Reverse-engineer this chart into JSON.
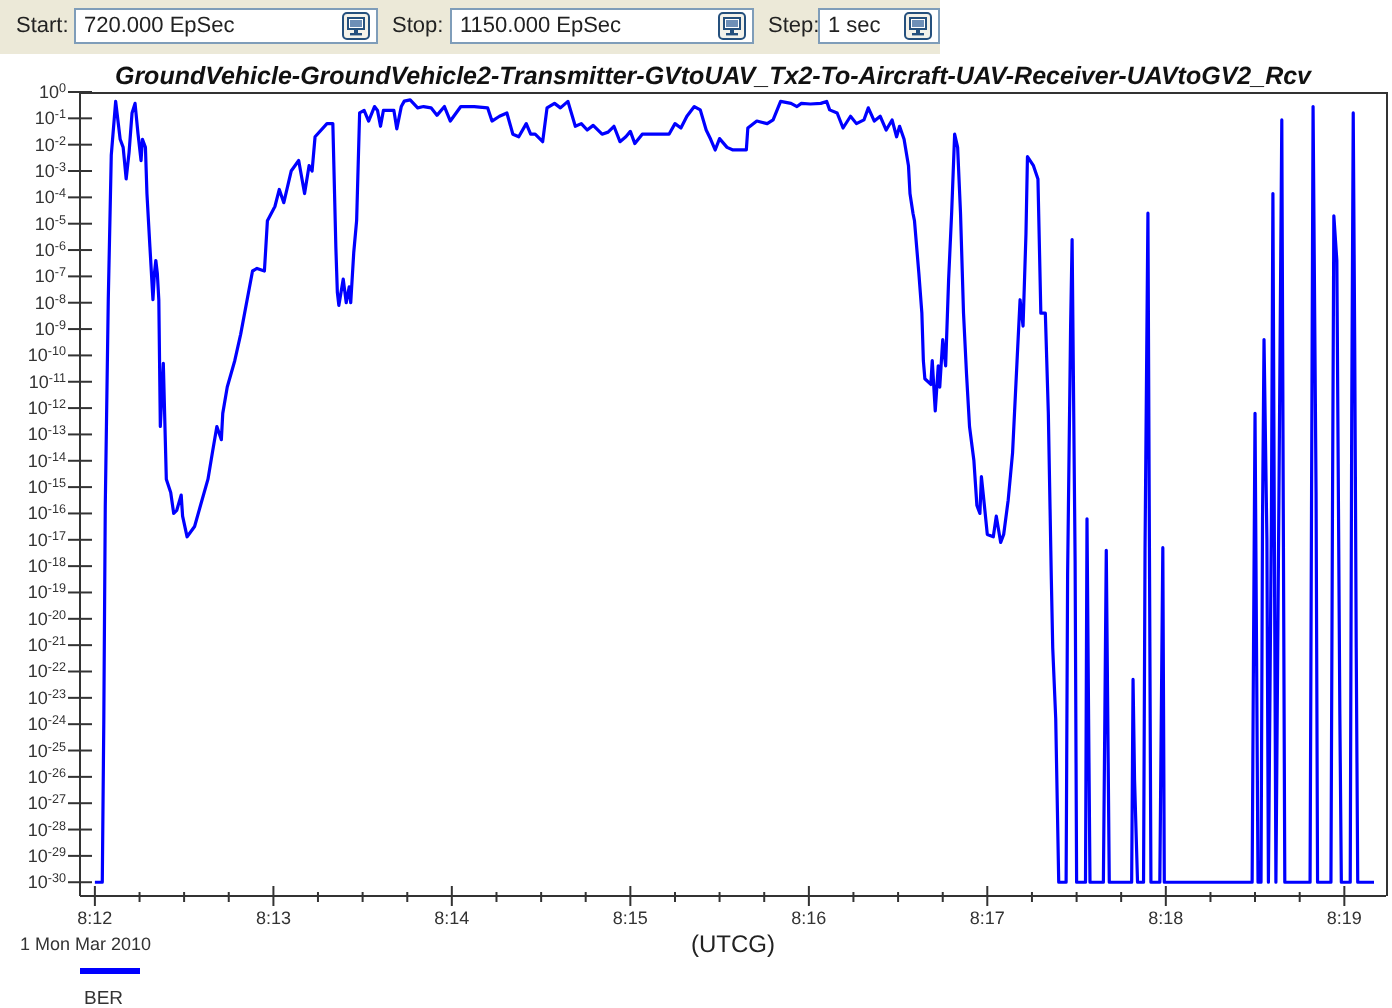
{
  "chart_data": {
    "type": "line",
    "title": "GroundVehicle-GroundVehicle2-Transmitter-GVtoUAV_Tx2-To-Aircraft-UAV-Receiver-UAVtoGV2_Rcv",
    "xlabel": "(UTCG)",
    "annotations": [
      "Start:",
      "720.000 EpSec",
      "Stop:",
      "1150.000 EpSec",
      "Step:",
      "1 sec",
      "1 Mon Mar 2010"
    ],
    "log": "y",
    "legend": "bottom left",
    "marker": "none",
    "line_style": "solid",
    "xlim": [
      8.19861,
      8.32056
    ],
    "xticks": [
      {
        "value": 8.2,
        "label": "8:12"
      },
      {
        "value": 8.20417,
        "label": null
      },
      {
        "value": 8.20833,
        "label": null
      },
      {
        "value": 8.2125,
        "label": null
      },
      {
        "value": 8.21667,
        "label": "8:13"
      },
      {
        "value": 8.22083,
        "label": null
      },
      {
        "value": 8.225,
        "label": null
      },
      {
        "value": 8.22917,
        "label": null
      },
      {
        "value": 8.23333,
        "label": "8:14"
      },
      {
        "value": 8.2375,
        "label": null
      },
      {
        "value": 8.24167,
        "label": null
      },
      {
        "value": 8.24583,
        "label": null
      },
      {
        "value": 8.25,
        "label": "8:15"
      },
      {
        "value": 8.25417,
        "label": null
      },
      {
        "value": 8.25833,
        "label": null
      },
      {
        "value": 8.2625,
        "label": null
      },
      {
        "value": 8.26667,
        "label": "8:16"
      },
      {
        "value": 8.27083,
        "label": null
      },
      {
        "value": 8.275,
        "label": null
      },
      {
        "value": 8.27917,
        "label": null
      },
      {
        "value": 8.28333,
        "label": "8:17"
      },
      {
        "value": 8.2875,
        "label": null
      },
      {
        "value": 8.29167,
        "label": null
      },
      {
        "value": 8.29583,
        "label": null
      },
      {
        "value": 8.3,
        "label": "8:18"
      },
      {
        "value": 8.30417,
        "label": null
      },
      {
        "value": 8.30833,
        "label": null
      },
      {
        "value": 8.3125,
        "label": null
      },
      {
        "value": 8.31667,
        "label": "8:19"
      }
    ],
    "ylim": [
      3e-31,
      1
    ],
    "yticks": [
      {
        "value": 1,
        "label": "10$^{0}$"
      },
      {
        "value": 0.1,
        "label": "10$^{-1}$"
      },
      {
        "value": 0.01,
        "label": "10$^{-2}$"
      },
      {
        "value": 0.001,
        "label": "10$^{-3}$"
      },
      {
        "value": 0.0001,
        "label": "10$^{-4}$"
      },
      {
        "value": 1e-05,
        "label": "10$^{-5}$"
      },
      {
        "value": 1e-06,
        "label": "10$^{-6}$"
      },
      {
        "value": 1e-07,
        "label": "10$^{-7}$"
      },
      {
        "value": 1e-08,
        "label": "10$^{-8}$"
      },
      {
        "value": 1e-09,
        "label": "10$^{-9}$"
      },
      {
        "value": 1e-10,
        "label": "10$^{-10}$"
      },
      {
        "value": 1e-11,
        "label": "10$^{-11}$"
      },
      {
        "value": 1e-12,
        "label": "10$^{-12}$"
      },
      {
        "value": 1e-13,
        "label": "10$^{-13}$"
      },
      {
        "value": 1e-14,
        "label": "10$^{-14}$"
      },
      {
        "value": 1e-15,
        "label": "10$^{-15}$"
      },
      {
        "value": 1e-16,
        "label": "10$^{-16}$"
      },
      {
        "value": 1e-17,
        "label": "10$^{-17}$"
      },
      {
        "value": 1e-18,
        "label": "10$^{-18}$"
      },
      {
        "value": 1e-19,
        "label": "10$^{-19}$"
      },
      {
        "value": 1e-20,
        "label": "10$^{-20}$"
      },
      {
        "value": 1e-21,
        "label": "10$^{-21}$"
      },
      {
        "value": 1e-22,
        "label": "10$^{-22}$"
      },
      {
        "value": 1e-23,
        "label": "10$^{-23}$"
      },
      {
        "value": 1e-24,
        "label": "10$^{-24}$"
      },
      {
        "value": 1e-25,
        "label": "10$^{-25}$"
      },
      {
        "value": 1e-26,
        "label": "10$^{-26}$"
      },
      {
        "value": 1e-27,
        "label": "10$^{-27}$"
      },
      {
        "value": 1e-28,
        "label": "10$^{-28}$"
      },
      {
        "value": 1e-29,
        "label": "10$^{-29}$"
      },
      {
        "value": 1e-30,
        "label": "10$^{-30}$"
      }
    ],
    "x": [
      8.2,
      8.20069,
      8.20083,
      8.20097,
      8.20125,
      8.20153,
      8.20194,
      8.20236,
      8.20264,
      8.20292,
      8.20319,
      8.20347,
      8.20375,
      8.20403,
      8.20431,
      8.20444,
      8.20472,
      8.20486,
      8.20514,
      8.20542,
      8.20556,
      8.20569,
      8.20583,
      8.20597,
      8.20611,
      8.20639,
      8.20653,
      8.20667,
      8.20708,
      8.20736,
      8.20764,
      8.20806,
      8.20819,
      8.20861,
      8.20931,
      8.20986,
      8.21056,
      8.21097,
      8.21139,
      8.21181,
      8.21194,
      8.21236,
      8.21306,
      8.21361,
      8.21472,
      8.21514,
      8.21583,
      8.21611,
      8.21681,
      8.21722,
      8.21764,
      8.21833,
      8.21903,
      8.21958,
      8.22,
      8.22028,
      8.22056,
      8.22167,
      8.22222,
      8.2225,
      8.22264,
      8.22278,
      8.22319,
      8.22347,
      8.22375,
      8.22389,
      8.22417,
      8.22444,
      8.22472,
      8.22514,
      8.22556,
      8.22611,
      8.22639,
      8.22667,
      8.22694,
      8.2275,
      8.22792,
      8.22819,
      8.22861,
      8.22889,
      8.22944,
      8.23014,
      8.23069,
      8.23139,
      8.23194,
      8.23264,
      8.23319,
      8.23417,
      8.23542,
      8.23667,
      8.23708,
      8.23778,
      8.23847,
      8.23903,
      8.23958,
      8.24028,
      8.24069,
      8.24111,
      8.24181,
      8.24222,
      8.24292,
      8.24347,
      8.24417,
      8.24486,
      8.24542,
      8.24597,
      8.24653,
      8.24736,
      8.24792,
      8.24847,
      8.24903,
      8.24958,
      8.25,
      8.25042,
      8.25111,
      8.25222,
      8.25361,
      8.25417,
      8.25472,
      8.25528,
      8.25597,
      8.25653,
      8.25708,
      8.2575,
      8.25792,
      8.25833,
      8.25903,
      8.25958,
      8.26083,
      8.26097,
      8.26181,
      8.26278,
      8.26333,
      8.26403,
      8.265,
      8.26556,
      8.26597,
      8.26681,
      8.26778,
      8.26833,
      8.26861,
      8.26931,
      8.26986,
      8.27056,
      8.27111,
      8.27181,
      8.27222,
      8.27278,
      8.27333,
      8.27389,
      8.27444,
      8.27486,
      8.27514,
      8.27556,
      8.27597,
      8.27611,
      8.27639,
      8.27653,
      8.27694,
      8.27722,
      8.27736,
      8.2775,
      8.27806,
      8.27819,
      8.27847,
      8.27875,
      8.27889,
      8.27917,
      8.27944,
      8.27972,
      8.28,
      8.28028,
      8.28056,
      8.28083,
      8.28111,
      8.28139,
      8.28167,
      8.28208,
      8.28236,
      8.28264,
      8.28278,
      8.28306,
      8.28333,
      8.28389,
      8.28417,
      8.28458,
      8.28486,
      8.28528,
      8.28569,
      8.28611,
      8.28639,
      8.28667,
      8.28694,
      8.28708,
      8.28764,
      8.28806,
      8.28833,
      8.28875,
      8.28903,
      8.28931,
      8.28944,
      8.28972,
      8.28986,
      8.29,
      8.29069,
      8.29083,
      8.29111,
      8.29125,
      8.29153,
      8.29167,
      8.2925,
      8.29264,
      8.29278,
      8.29292,
      8.29417,
      8.29431,
      8.29444,
      8.29472,
      8.29681,
      8.29694,
      8.29708,
      8.29736,
      8.29792,
      8.29806,
      8.29833,
      8.29847,
      8.29861,
      8.29944,
      8.29958,
      8.29972,
      8.29986,
      8.30806,
      8.30819,
      8.30833,
      8.30847,
      8.30861,
      8.30889,
      8.30903,
      8.30917,
      8.30944,
      8.30958,
      8.30986,
      8.31,
      8.31014,
      8.31028,
      8.31056,
      8.31083,
      8.31097,
      8.31111,
      8.31347,
      8.31361,
      8.31375,
      8.31403,
      8.31417,
      8.31542,
      8.31556,
      8.31569,
      8.31597,
      8.31625,
      8.31639,
      8.31722,
      8.31736,
      8.3175,
      8.31764,
      8.31778,
      8.31792,
      8.31944
    ],
    "series": [
      {
        "name": "BER",
        "color": "#0000ff",
        "values": [
          1e-30,
          1e-30,
          1e-24,
          2e-16,
          1.3e-08,
          0.004,
          0.44,
          0.016,
          0.0079,
          0.0005,
          0.005,
          0.16,
          0.37,
          0.025,
          0.0025,
          0.016,
          0.0079,
          0.00014,
          1.3e-06,
          1.3e-08,
          1.3e-07,
          4e-07,
          1.3e-07,
          1.3e-08,
          2e-13,
          5e-11,
          3.2e-13,
          2e-15,
          6.3e-16,
          1e-16,
          1.3e-16,
          5e-16,
          7.9e-17,
          1.3e-17,
          3.2e-17,
          2e-16,
          2e-15,
          2e-14,
          2e-13,
          6.3e-14,
          6.3e-13,
          6.3e-12,
          6.3e-11,
          6.3e-10,
          1.6e-07,
          2e-07,
          1.6e-07,
          1.3e-05,
          4.5e-05,
          0.0002,
          6.3e-05,
          0.001,
          0.0025,
          0.00014,
          0.0016,
          0.001,
          0.02,
          0.063,
          0.063,
          1.3e-06,
          2.5e-08,
          7.9e-09,
          7.9e-08,
          1e-08,
          4e-08,
          1e-08,
          7.9e-07,
          1.3e-05,
          0.16,
          0.2,
          0.079,
          0.28,
          0.2,
          0.05,
          0.2,
          0.2,
          0.2,
          0.04,
          0.28,
          0.45,
          0.5,
          0.25,
          0.28,
          0.25,
          0.13,
          0.28,
          0.079,
          0.28,
          0.28,
          0.25,
          0.079,
          0.12,
          0.16,
          0.025,
          0.02,
          0.063,
          0.025,
          0.025,
          0.013,
          0.25,
          0.37,
          0.25,
          0.44,
          0.05,
          0.063,
          0.036,
          0.054,
          0.025,
          0.03,
          0.05,
          0.013,
          0.02,
          0.032,
          0.011,
          0.025,
          0.025,
          0.025,
          0.063,
          0.043,
          0.12,
          0.28,
          0.21,
          0.036,
          0.016,
          0.0063,
          0.017,
          0.0079,
          0.0063,
          0.0063,
          0.043,
          0.079,
          0.063,
          0.087,
          0.44,
          0.37,
          0.28,
          0.37,
          0.35,
          0.37,
          0.44,
          0.21,
          0.16,
          0.043,
          0.12,
          0.063,
          0.087,
          0.25,
          0.079,
          0.12,
          0.036,
          0.087,
          0.02,
          0.05,
          0.016,
          0.0016,
          0.00014,
          2.5e-05,
          1.3e-05,
          1.3e-07,
          4e-09,
          6.3e-11,
          1.3e-11,
          7.9e-12,
          6.3e-11,
          7.9e-13,
          4e-11,
          6.3e-12,
          4e-10,
          4e-11,
          7.9e-08,
          2.5e-05,
          0.025,
          0.0079,
          2.5e-05,
          4e-09,
          2e-11,
          2e-13,
          1e-14,
          2e-16,
          1e-16,
          2.5e-15,
          2e-16,
          1.6e-17,
          1.3e-17,
          7.9e-17,
          7.9e-18,
          1.6e-17,
          3.2e-16,
          2e-14,
          6.3e-11,
          1.3e-08,
          1.3e-09,
          4e-06,
          0.0035,
          0.0016,
          0.0005,
          4e-09,
          4e-09,
          6.3e-13,
          3.2e-19,
          7.9e-22,
          1.6e-24,
          1.3e-27,
          1e-30,
          1e-30,
          5e-19,
          1.3e-09,
          2.5e-06,
          1.6e-18,
          1e-30,
          1e-30,
          6.3e-17,
          5e-24,
          1e-30,
          1e-30,
          2.5e-24,
          4e-18,
          1e-30,
          1e-30,
          5e-23,
          7.9e-27,
          1e-30,
          1e-30,
          5e-18,
          2.5e-05,
          5e-18,
          1e-30,
          1e-30,
          2.5e-24,
          5e-18,
          1e-30,
          1e-30,
          7.9e-22,
          6.3e-13,
          7.9e-22,
          1e-30,
          1e-30,
          6.3e-17,
          4e-10,
          1e-17,
          1e-30,
          6.3e-17,
          0.00014,
          5e-18,
          1e-30,
          3.2e-16,
          0.087,
          1e-16,
          1e-30,
          1e-30,
          6.3e-16,
          0.28,
          6.3e-16,
          1e-30,
          1e-30,
          1e-16,
          2e-05,
          4e-07,
          2.5e-24,
          1e-30,
          1e-30,
          6.3e-13,
          0.16,
          2e-10,
          7.9e-22,
          1e-30,
          1e-30
        ]
      }
    ]
  }
}
